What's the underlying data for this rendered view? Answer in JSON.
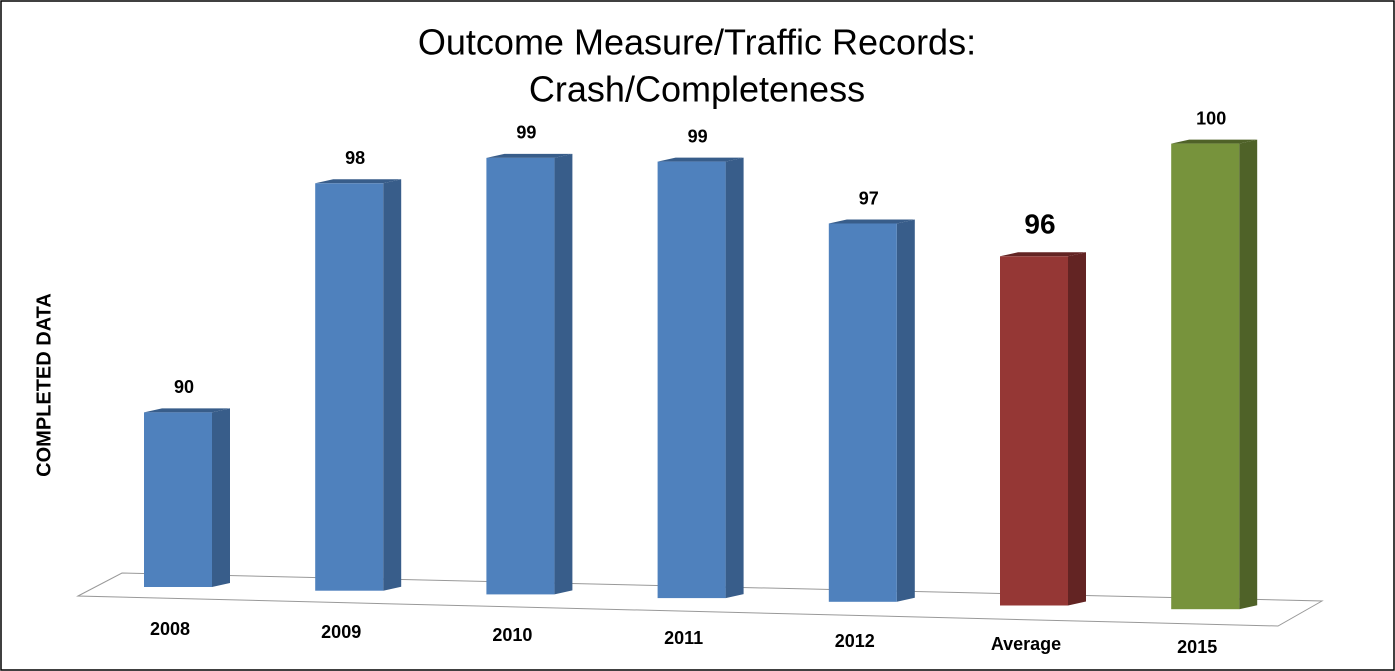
{
  "chart_data": {
    "type": "bar3d",
    "title": [
      "Outcome Measure/Traffic Records:",
      "Crash/Completeness"
    ],
    "y_label": "COMPLETED DATA",
    "categories": [
      "2008",
      "2009",
      "2010",
      "2011",
      "2012",
      "Average",
      "2015"
    ],
    "values": [
      90,
      98,
      99,
      99,
      97,
      96,
      100
    ],
    "colors": [
      "#4f81bd",
      "#4f81bd",
      "#4f81bd",
      "#4f81bd",
      "#4f81bd",
      "#953735",
      "#77933c"
    ],
    "side_colors": [
      "#385d8a",
      "#385d8a",
      "#385d8a",
      "#385d8a",
      "#385d8a",
      "#632423",
      "#4f6228"
    ],
    "highlight": "Average",
    "ylim": [
      84,
      100
    ]
  }
}
